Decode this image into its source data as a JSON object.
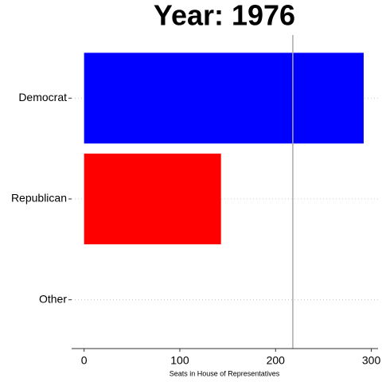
{
  "chart_data": {
    "type": "bar",
    "orientation": "horizontal",
    "title": "Year: 1976",
    "x_label": "Seats in House of Representatives",
    "categories": [
      "Democrat",
      "Republican",
      "Other"
    ],
    "values": [
      292,
      143,
      0
    ],
    "colors": [
      "#0000ff",
      "#ff0000",
      "#808080"
    ],
    "xlim": [
      -13,
      307
    ],
    "xticks": [
      0,
      100,
      200,
      300
    ],
    "vline": 218,
    "grid": true
  }
}
